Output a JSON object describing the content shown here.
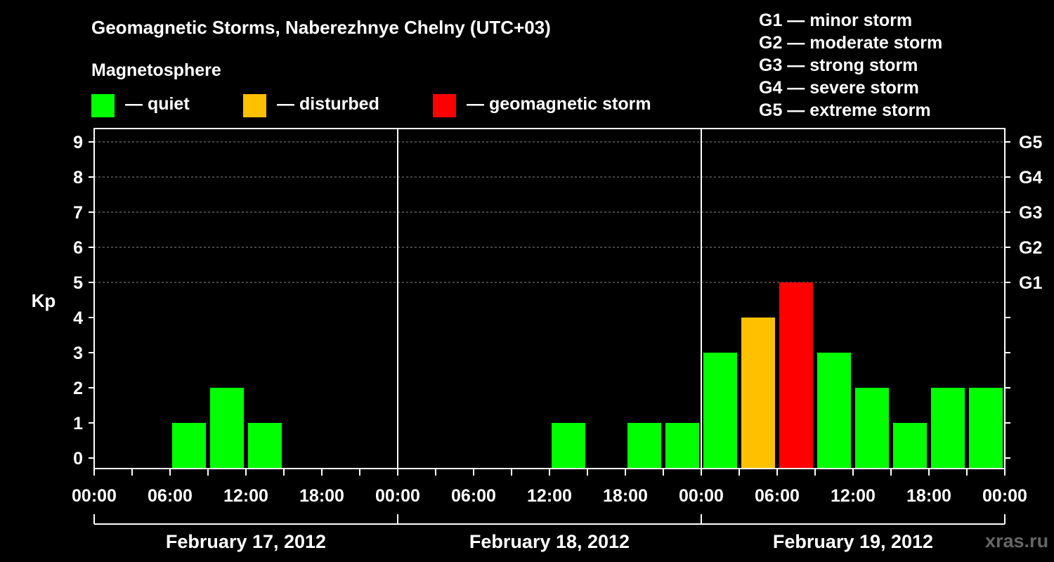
{
  "header": {
    "title": "Geomagnetic Storms, Naberezhnye Chelny (UTC+03)",
    "magnetosphere_label": "Magnetosphere"
  },
  "legend": [
    {
      "label": "— quiet",
      "color": "#00ff00"
    },
    {
      "label": "— disturbed",
      "color": "#ffc000"
    },
    {
      "label": "— geomagnetic storm",
      "color": "#ff0000"
    }
  ],
  "g_scale_legend": [
    "G1 — minor storm",
    "G2 — moderate storm",
    "G3 — strong storm",
    "G4 — severe storm",
    "G5 — extreme storm"
  ],
  "watermark": "xras.ru",
  "chart_data": {
    "type": "bar",
    "title": "Geomagnetic Storms, Naberezhnye Chelny (UTC+03)",
    "ylabel": "Kp",
    "xlabel": "",
    "ylim": [
      0,
      9
    ],
    "y_ticks": [
      "0",
      "1",
      "2",
      "3",
      "4",
      "5",
      "6",
      "7",
      "8",
      "9"
    ],
    "right_axis_ticks": [
      {
        "kp": 5,
        "label": "G1"
      },
      {
        "kp": 6,
        "label": "G2"
      },
      {
        "kp": 7,
        "label": "G3"
      },
      {
        "kp": 8,
        "label": "G4"
      },
      {
        "kp": 9,
        "label": "G5"
      }
    ],
    "x_tick_labels": [
      "00:00",
      "06:00",
      "12:00",
      "18:00",
      "00:00",
      "06:00",
      "12:00",
      "18:00",
      "00:00",
      "06:00",
      "12:00",
      "18:00",
      "00:00"
    ],
    "days": [
      "February 17, 2012",
      "February 18, 2012",
      "February 19, 2012"
    ],
    "interval_hours": 3,
    "kp_values": [
      null,
      null,
      1,
      2,
      1,
      null,
      null,
      null,
      null,
      null,
      null,
      null,
      1,
      null,
      1,
      1,
      3,
      4,
      5,
      3,
      2,
      1,
      2,
      2
    ],
    "categories": [
      "quiet",
      "disturbed",
      "geomagnetic storm"
    ],
    "category_colors": {
      "quiet": "#00ff00",
      "disturbed": "#ffc000",
      "geomagnetic storm": "#ff0000"
    },
    "grid": true
  }
}
